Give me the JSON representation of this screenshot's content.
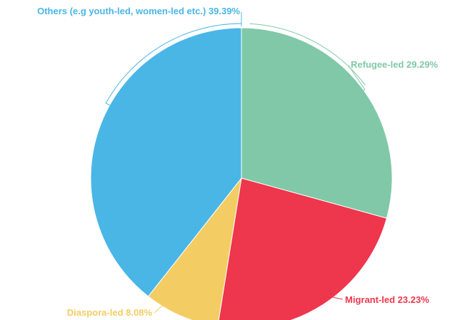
{
  "chart_data": {
    "type": "pie",
    "title": "",
    "start_angle_deg": 0,
    "direction": "clockwise",
    "slices": [
      {
        "key": "refugee",
        "name": "Refugee-led",
        "value": 29.29,
        "display": "Refugee-led 29.29%",
        "color": "#80c8a8"
      },
      {
        "key": "migrant",
        "name": "Migrant-led",
        "value": 23.23,
        "display": "Migrant-led 23.23%",
        "color": "#ee364c"
      },
      {
        "key": "diaspora",
        "name": "Diaspora-led",
        "value": 8.08,
        "display": "Diaspora-led 8.08%",
        "color": "#f3cd63"
      },
      {
        "key": "others",
        "name": "Others (e.g youth-led, women-led etc.)",
        "value": 39.39,
        "display": "Others (e.g youth-led, women-led etc.) 39.39%",
        "color": "#49b6e6"
      }
    ]
  }
}
